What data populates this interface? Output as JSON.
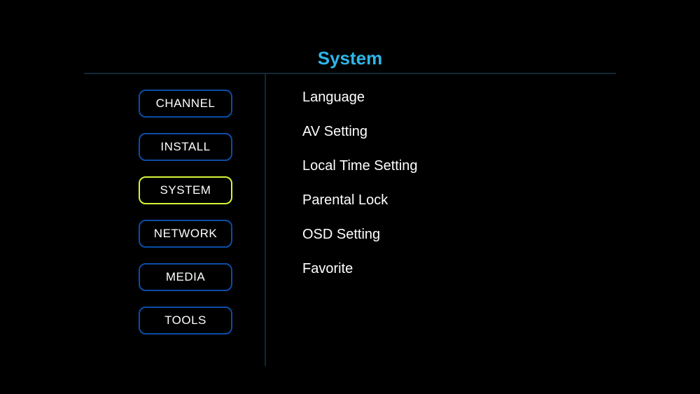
{
  "title": "System",
  "title_color": "#2eb6e8",
  "background_color": "#000000",
  "text_color": "#ffffff",
  "divider_color": "#122838",
  "nav_border_color": "#0a4da6",
  "nav_selected_border_color": "#d6f33a",
  "sidebar": {
    "items": [
      {
        "label": "CHANNEL",
        "selected": false
      },
      {
        "label": "INSTALL",
        "selected": false
      },
      {
        "label": "SYSTEM",
        "selected": true
      },
      {
        "label": "NETWORK",
        "selected": false
      },
      {
        "label": "MEDIA",
        "selected": false
      },
      {
        "label": "TOOLS",
        "selected": false
      }
    ]
  },
  "panel": {
    "items": [
      {
        "label": "Language"
      },
      {
        "label": "AV Setting"
      },
      {
        "label": "Local Time Setting"
      },
      {
        "label": "Parental Lock"
      },
      {
        "label": "OSD Setting"
      },
      {
        "label": "Favorite"
      }
    ]
  }
}
